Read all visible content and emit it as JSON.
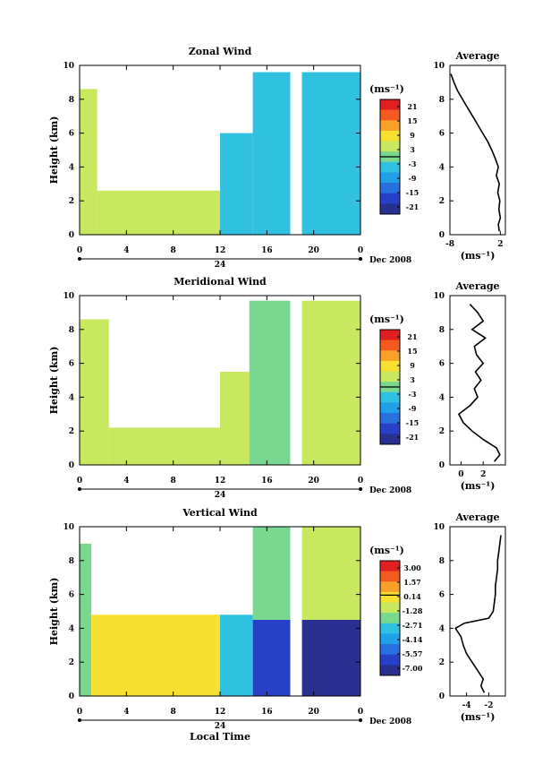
{
  "chart_data": [
    {
      "type": "heatmap",
      "title": "Zonal Wind",
      "ylabel": "Height (km)",
      "xlabel": "",
      "xlim": [
        0,
        24
      ],
      "ylim": [
        0,
        10
      ],
      "x_ticks": [
        "0",
        "4",
        "8",
        "12",
        "16",
        "20",
        "0"
      ],
      "y_ticks": [
        "0",
        "2",
        "4",
        "6",
        "8",
        "10"
      ],
      "date_axis": {
        "label": "24",
        "suffix": "Dec 2008"
      },
      "colorbar": {
        "unit": "(ms⁻¹)",
        "ticks": [
          "21",
          "15",
          "9",
          "3",
          "-3",
          "-9",
          "-15",
          "-21"
        ],
        "colors": [
          "#e02020",
          "#f45a20",
          "#f8a028",
          "#f8e030",
          "#c8e860",
          "#78d890",
          "#30c0e0",
          "#20a0e8",
          "#2870e0",
          "#2840c8",
          "#283090"
        ]
      },
      "regions": [
        {
          "t0": 0,
          "t1": 1.5,
          "h0": 0,
          "h1": 8.6,
          "value": 3
        },
        {
          "t0": 1.5,
          "t1": 12,
          "h0": 0,
          "h1": 2.6,
          "value": 2
        },
        {
          "t0": 12,
          "t1": 14.8,
          "h0": 0,
          "h1": 6,
          "value": -2
        },
        {
          "t0": 14.8,
          "t1": 18,
          "h0": 0,
          "h1": 9.6,
          "value": -4
        },
        {
          "t0": 19,
          "t1": 24,
          "h0": 0,
          "h1": 9.6,
          "value": -3
        }
      ],
      "average_profile": {
        "title": "Average",
        "xlabel": "(ms⁻¹)",
        "x_ticks": [
          "-8",
          "2"
        ],
        "xlim": [
          -8,
          3
        ],
        "y_ticks": [
          "0",
          "2",
          "4",
          "6",
          "8",
          "10"
        ],
        "heights": [
          0.2,
          0.6,
          1,
          1.5,
          2,
          2.5,
          3,
          3.5,
          4,
          4.5,
          5,
          5.5,
          6,
          6.5,
          7,
          7.5,
          8,
          8.5,
          9,
          9.5
        ],
        "values": [
          1.8,
          1.6,
          2.0,
          1.7,
          1.9,
          1.5,
          1.8,
          1.2,
          1.6,
          1.0,
          0.3,
          -0.5,
          -1.5,
          -2.5,
          -3.5,
          -4.5,
          -5.5,
          -6.5,
          -7.2,
          -7.8
        ]
      }
    },
    {
      "type": "heatmap",
      "title": "Meridional Wind",
      "ylabel": "Height (km)",
      "xlabel": "",
      "xlim": [
        0,
        24
      ],
      "ylim": [
        0,
        10
      ],
      "x_ticks": [
        "0",
        "4",
        "8",
        "12",
        "16",
        "20",
        "0"
      ],
      "y_ticks": [
        "0",
        "2",
        "4",
        "6",
        "8",
        "10"
      ],
      "date_axis": {
        "label": "24",
        "suffix": "Dec 2008"
      },
      "colorbar": {
        "unit": "(ms⁻¹)",
        "ticks": [
          "21",
          "15",
          "9",
          "3",
          "-3",
          "-9",
          "-15",
          "-21"
        ],
        "colors": [
          "#e02020",
          "#f45a20",
          "#f8a028",
          "#f8e030",
          "#c8e860",
          "#78d890",
          "#30c0e0",
          "#20a0e8",
          "#2870e0",
          "#2840c8",
          "#283090"
        ]
      },
      "regions": [
        {
          "t0": 0,
          "t1": 2.5,
          "h0": 0,
          "h1": 8.6,
          "value": 2
        },
        {
          "t0": 2.5,
          "t1": 12,
          "h0": 0,
          "h1": 2.2,
          "value": 2
        },
        {
          "t0": 12,
          "t1": 14.5,
          "h0": 0,
          "h1": 5.5,
          "value": 4
        },
        {
          "t0": 14.5,
          "t1": 18,
          "h0": 0,
          "h1": 9.7,
          "value": 1
        },
        {
          "t0": 19,
          "t1": 24,
          "h0": 0,
          "h1": 9.7,
          "value": 3
        }
      ],
      "average_profile": {
        "title": "Average",
        "xlabel": "(ms⁻¹)",
        "x_ticks": [
          "0",
          "2"
        ],
        "xlim": [
          -1,
          4
        ],
        "y_ticks": [
          "0",
          "2",
          "4",
          "6",
          "8",
          "10"
        ],
        "heights": [
          0.2,
          0.6,
          1,
          1.5,
          2,
          2.5,
          3,
          3.5,
          4,
          4.5,
          5,
          5.5,
          6,
          6.5,
          7,
          7.5,
          8,
          8.5,
          9,
          9.5
        ],
        "values": [
          3.0,
          3.5,
          3.2,
          2.0,
          1.0,
          0.2,
          -0.2,
          0.8,
          1.5,
          1.2,
          1.8,
          1.3,
          2.0,
          1.4,
          1.2,
          2.2,
          1.0,
          2.0,
          1.5,
          0.8
        ]
      }
    },
    {
      "type": "heatmap",
      "title": "Vertical Wind",
      "ylabel": "Height (km)",
      "xlabel": "Local Time",
      "xlim": [
        0,
        24
      ],
      "ylim": [
        0,
        10
      ],
      "x_ticks": [
        "0",
        "4",
        "8",
        "12",
        "16",
        "20",
        "0"
      ],
      "y_ticks": [
        "0",
        "2",
        "4",
        "6",
        "8",
        "10"
      ],
      "date_axis": {
        "label": "24",
        "suffix": "Dec 2008"
      },
      "colorbar": {
        "unit": "(ms⁻¹)",
        "ticks": [
          "3.00",
          "1.57",
          "0.14",
          "-1.28",
          "-2.71",
          "-4.14",
          "-5.57",
          "-7.00"
        ],
        "colors": [
          "#e02020",
          "#f45a20",
          "#f8a028",
          "#f8e030",
          "#c8e860",
          "#78d890",
          "#30c0e0",
          "#20a0e8",
          "#2870e0",
          "#2840c8",
          "#283090"
        ]
      },
      "regions": [
        {
          "t0": 0,
          "t1": 1,
          "h0": 0,
          "h1": 9,
          "value": -2
        },
        {
          "t0": 1,
          "t1": 12,
          "h0": 0,
          "h1": 4.8,
          "value": -0.5
        },
        {
          "t0": 12,
          "t1": 14.8,
          "h0": 0,
          "h1": 4.8,
          "value": -3
        },
        {
          "t0": 14.8,
          "t1": 18,
          "h0": 0,
          "h1": 4.5,
          "value": -5.8
        },
        {
          "t0": 14.8,
          "t1": 18,
          "h0": 4.5,
          "h1": 10,
          "value": -2
        },
        {
          "t0": 19,
          "t1": 24,
          "h0": 0,
          "h1": 4.5,
          "value": -6.5
        },
        {
          "t0": 19,
          "t1": 24,
          "h0": 4.5,
          "h1": 10,
          "value": -1
        }
      ],
      "average_profile": {
        "title": "Average",
        "xlabel": "(ms⁻¹)",
        "x_ticks": [
          "-4",
          "-2"
        ],
        "xlim": [
          -5.5,
          -0.5
        ],
        "y_ticks": [
          "0",
          "2",
          "4",
          "6",
          "8",
          "10"
        ],
        "heights": [
          0.2,
          0.6,
          1,
          1.5,
          2,
          2.5,
          3,
          3.5,
          4,
          4.3,
          4.6,
          5,
          5.5,
          6,
          6.5,
          7,
          7.5,
          8,
          8.5,
          9,
          9.5
        ],
        "values": [
          -2.4,
          -2.7,
          -2.5,
          -3.0,
          -3.5,
          -4.0,
          -4.3,
          -4.5,
          -5.0,
          -4.2,
          -2.0,
          -1.6,
          -1.5,
          -1.4,
          -1.4,
          -1.3,
          -1.2,
          -1.2,
          -1.1,
          -1.0,
          -0.9
        ]
      }
    }
  ]
}
